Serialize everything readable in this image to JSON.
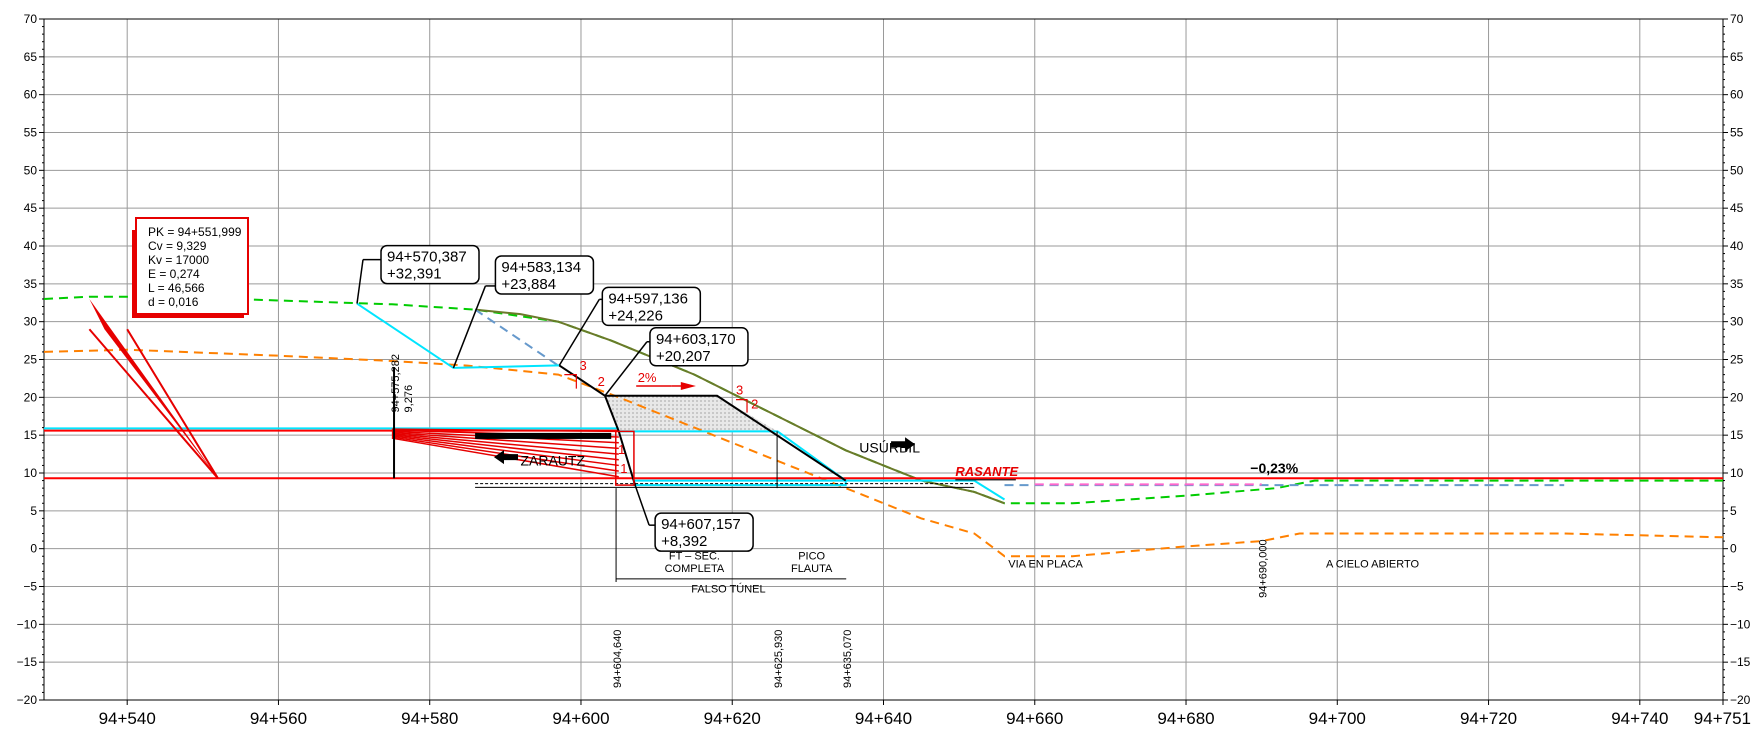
{
  "chart_data": {
    "type": "line",
    "xlim": [
      94529,
      94751
    ],
    "ylim": [
      -20,
      70
    ],
    "x_ticks": [
      {
        "value": 94540,
        "label": "94+540"
      },
      {
        "value": 94560,
        "label": "94+560"
      },
      {
        "value": 94580,
        "label": "94+580"
      },
      {
        "value": 94600,
        "label": "94+600"
      },
      {
        "value": 94620,
        "label": "94+620"
      },
      {
        "value": 94640,
        "label": "94+640"
      },
      {
        "value": 94660,
        "label": "94+660"
      },
      {
        "value": 94680,
        "label": "94+680"
      },
      {
        "value": 94700,
        "label": "94+700"
      },
      {
        "value": 94720,
        "label": "94+720"
      },
      {
        "value": 94740,
        "label": "94+740"
      },
      {
        "value": 94751,
        "label": "94+751"
      }
    ],
    "y_ticks": [
      70,
      65,
      60,
      55,
      50,
      45,
      40,
      35,
      30,
      25,
      20,
      15,
      10,
      5,
      0,
      -5,
      -10,
      -15,
      -20
    ],
    "grid": true,
    "series": [
      {
        "color": "#00cc00",
        "dash": true,
        "points": [
          [
            94529,
            33
          ],
          [
            94535,
            33.3
          ],
          [
            94545,
            33.3
          ],
          [
            94560,
            32.8
          ],
          [
            94575,
            32.3
          ],
          [
            94586,
            31.6
          ],
          [
            94597,
            30
          ],
          [
            94604,
            27.5
          ],
          [
            94615,
            23
          ],
          [
            94625,
            18
          ],
          [
            94635,
            13
          ],
          [
            94645,
            9
          ],
          [
            94652,
            7.5
          ],
          [
            94656,
            6
          ],
          [
            94665,
            6
          ],
          [
            94680,
            7
          ],
          [
            94692,
            8
          ],
          [
            94697,
            9
          ],
          [
            94751,
            9
          ]
        ]
      },
      {
        "color": "#ff8000",
        "dash": true,
        "points": [
          [
            94529,
            26
          ],
          [
            94540,
            26.3
          ],
          [
            94560,
            25.5
          ],
          [
            94575,
            24.8
          ],
          [
            94585,
            24.2
          ],
          [
            94597,
            23
          ],
          [
            94605,
            20
          ],
          [
            94615,
            16
          ],
          [
            94625,
            12
          ],
          [
            94635,
            8
          ],
          [
            94645,
            4
          ],
          [
            94652,
            2
          ],
          [
            94656,
            -1
          ],
          [
            94665,
            -1
          ],
          [
            94680,
            0.3
          ],
          [
            94690,
            1
          ],
          [
            94695,
            2
          ],
          [
            94730,
            2
          ],
          [
            94751,
            1.5
          ]
        ]
      },
      {
        "color": "#6b7a2a",
        "dash": false,
        "points": [
          [
            94586,
            31.6
          ],
          [
            94592,
            31
          ],
          [
            94597,
            30
          ],
          [
            94604,
            27.5
          ],
          [
            94615,
            23
          ],
          [
            94625,
            18
          ],
          [
            94635,
            13
          ],
          [
            94645,
            9
          ],
          [
            94652,
            7.5
          ],
          [
            94656,
            6
          ]
        ]
      },
      {
        "color": "#6699cc",
        "dash": true,
        "points": [
          [
            94586,
            31.6
          ],
          [
            94597,
            24.2
          ]
        ]
      },
      {
        "color": "#6699cc",
        "dash": true,
        "points": [
          [
            94656,
            8.4
          ],
          [
            94670,
            8.4
          ],
          [
            94730,
            8.4
          ]
        ]
      },
      {
        "color": "#ff66cc",
        "dash": true,
        "points": [
          [
            94660,
            8.5
          ],
          [
            94690,
            8.5
          ]
        ]
      },
      {
        "color": "#ff0000",
        "dash": false,
        "points": [
          [
            94529,
            9.3
          ],
          [
            94751,
            9.3
          ]
        ]
      },
      {
        "color": "#ff0000",
        "dash": false,
        "points": [
          [
            94529,
            15.6
          ],
          [
            94605,
            15.6
          ]
        ]
      },
      {
        "color": "#00e5ff",
        "dash": false,
        "points": [
          [
            94570.387,
            32.391
          ],
          [
            94583.134,
            23.884
          ],
          [
            94597.136,
            24.226
          ]
        ]
      },
      {
        "color": "#00e5ff",
        "dash": false,
        "points": [
          [
            94529,
            15.9
          ],
          [
            94605,
            15.9
          ]
        ]
      },
      {
        "color": "#00e5ff",
        "dash": false,
        "points": [
          [
            94605,
            15.5
          ],
          [
            94626,
            15.5
          ],
          [
            94635,
            9
          ]
        ]
      },
      {
        "color": "#00e5ff",
        "dash": false,
        "points": [
          [
            94607,
            9
          ],
          [
            94635,
            9
          ],
          [
            94635,
            8.4
          ],
          [
            94607,
            8.4
          ],
          [
            94607,
            9
          ]
        ]
      },
      {
        "color": "#00e5ff",
        "dash": false,
        "points": [
          [
            94635,
            9
          ],
          [
            94652,
            9
          ],
          [
            94656,
            6.5
          ]
        ]
      },
      {
        "color": "#000000",
        "dash": false,
        "points": [
          [
            94597.136,
            24.226
          ],
          [
            94603.17,
            20.207
          ],
          [
            94605,
            15.5
          ],
          [
            94607.157,
            8.392
          ]
        ]
      },
      {
        "color": "#000000",
        "dash": false,
        "points": [
          [
            94603.17,
            20.207
          ],
          [
            94618,
            20.207
          ],
          [
            94635,
            9
          ]
        ]
      }
    ],
    "fill_region": [
      [
        94603.17,
        20.207
      ],
      [
        94618,
        20.207
      ],
      [
        94626,
        15.5
      ],
      [
        94605,
        15.5
      ]
    ],
    "points_of_interest": [
      {
        "x": 94570.387,
        "y": 32.391,
        "line1": "94+570,387",
        "line2": "+32,391"
      },
      {
        "x": 94583.134,
        "y": 23.884,
        "line1": "94+583,134",
        "line2": "+23,884"
      },
      {
        "x": 94597.136,
        "y": 24.226,
        "line1": "94+597,136",
        "line2": "+24,226"
      },
      {
        "x": 94603.17,
        "y": 20.207,
        "line1": "94+603,170",
        "line2": "+20,207"
      },
      {
        "x": 94607.157,
        "y": 8.392,
        "line1": "94+607,157",
        "line2": "+8,392"
      }
    ],
    "vertical_curve": {
      "pk_label": "PK = 94+551,999",
      "cv_label": "Cv = 9,329",
      "kv_label": "Kv  = 17000",
      "e_label": "E   = 0,274",
      "l_label": "L   = 46,566",
      "d_label": "d   = 0,016",
      "x": 94551.999,
      "y": 9.329
    },
    "stations": [
      {
        "x": 94575.282,
        "label": "94+575,282",
        "sub": "9,276"
      },
      {
        "x": 94604.64,
        "label": "94+604,640"
      },
      {
        "x": 94625.93,
        "label": "94+625,930"
      },
      {
        "x": 94635.07,
        "label": "94+635,070"
      },
      {
        "x": 94690.0,
        "label": "94+690,000"
      }
    ],
    "annotations": {
      "rasante": "RASANTE",
      "slope_rasante": "−0,23%",
      "slope_platform": "2%",
      "usurbil": "USÚRBIL",
      "zarautz": "ZARAUTZ",
      "via_en_placa": "VIA  EN  PLACA",
      "a_cielo_abierto": "A  CIELO  ABIERTO",
      "ft_line1": "FT  –  SEC.",
      "ft_line2": "COMPLETA",
      "pico_line1": "PICO",
      "pico_line2": "FLAUTA",
      "falso_tunel": "FALSO  TÚNEL",
      "slope_3": "3",
      "slope_2": "2",
      "slope_1": "1"
    }
  }
}
